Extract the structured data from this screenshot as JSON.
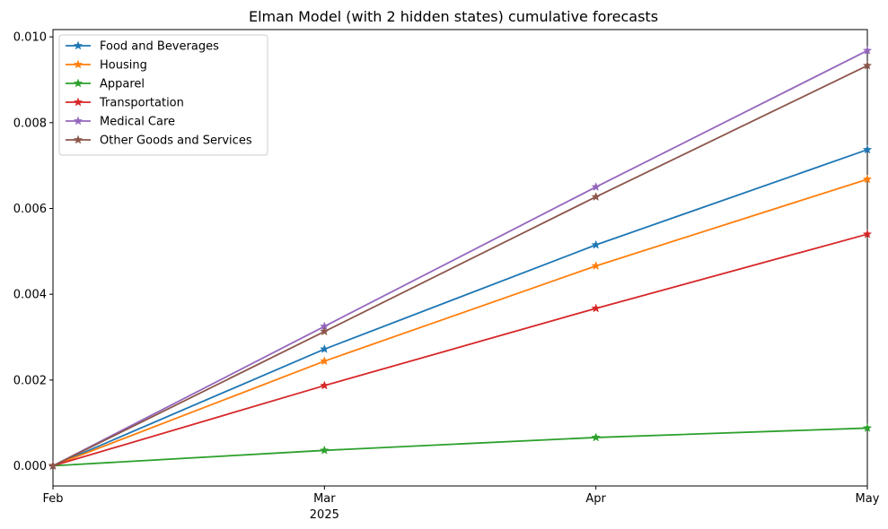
{
  "chart_data": {
    "type": "line",
    "title": "Elman Model (with 2 hidden states) cumulative forecasts",
    "xlabel": "",
    "ylabel": "",
    "x": [
      "2025-02",
      "2025-03",
      "2025-04",
      "2025-05"
    ],
    "x_tick_labels": [
      "Feb",
      "Mar",
      "Apr",
      "May"
    ],
    "x_year_label": "2025",
    "ylim": [
      -0.00047,
      0.01017
    ],
    "y_ticks": [
      "0.000",
      "0.002",
      "0.004",
      "0.006",
      "0.008",
      "0.010"
    ],
    "grid": false,
    "legend_placement": "top-left",
    "marker": "star",
    "series": [
      {
        "name": "Food and Beverages",
        "color": "#1f77b4",
        "values": [
          0.0,
          0.00272,
          0.00515,
          0.00737
        ]
      },
      {
        "name": "Housing",
        "color": "#ff7f0e",
        "values": [
          0.0,
          0.00244,
          0.00466,
          0.00668
        ]
      },
      {
        "name": "Apparel",
        "color": "#2ca02c",
        "values": [
          0.0,
          0.00036,
          0.00066,
          0.00088
        ]
      },
      {
        "name": "Transportation",
        "color": "#d62728",
        "values": [
          0.0,
          0.00187,
          0.00367,
          0.0054
        ]
      },
      {
        "name": "Medical Care",
        "color": "#9467bd",
        "values": [
          0.0,
          0.00325,
          0.0065,
          0.00968
        ]
      },
      {
        "name": "Other Goods and Services",
        "color": "#8c564b",
        "values": [
          0.0,
          0.00313,
          0.00627,
          0.00933
        ]
      }
    ]
  }
}
